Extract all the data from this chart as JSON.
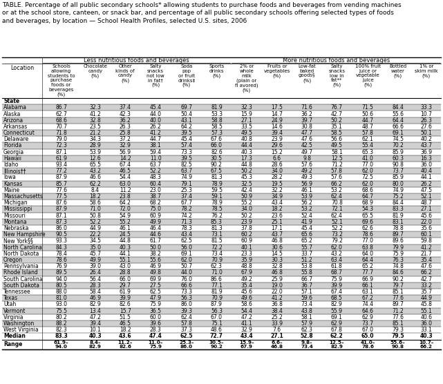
{
  "title": "TABLE. Percentage of all public secondary schools* allowing students to purchase foods and beverages from vending machines\nor at the school store, canteen, or snack bar, and percentage of all public secondary schools offering selected types of foods\nand beverages, by location — School Health Profiles, selected U.S. sites, 2006",
  "locations": [
    "State",
    "Alabama",
    "Alaska",
    "Arizona",
    "Arkansas",
    "Connecticut",
    "Delaware",
    "Florida",
    "Georgia",
    "Hawaii",
    "Idaho",
    "Illinois††",
    "Iowa",
    "Kansas",
    "Maine",
    "Massachusetts",
    "Michigan",
    "Mississippi",
    "Missouri",
    "Montana",
    "Nebraska",
    "New Hampshire",
    "New York§§",
    "North Carolina",
    "North Dakota",
    "Oregon",
    "Pennsylvania",
    "Rhode Island",
    "South Carolina",
    "South Dakota",
    "Tennessee",
    "Texas",
    "Utah",
    "Vermont",
    "Virginia",
    "Washington",
    "West Virginia",
    "Median",
    "Range"
  ],
  "data": [
    [
      null,
      null,
      null,
      null,
      null,
      null,
      null,
      null,
      null,
      null,
      null,
      null,
      null
    ],
    [
      86.7,
      32.3,
      37.4,
      45.4,
      69.7,
      81.9,
      32.3,
      17.5,
      71.6,
      76.7,
      71.5,
      84.4,
      33.3
    ],
    [
      62.7,
      41.2,
      42.3,
      44.0,
      50.4,
      53.3,
      15.9,
      14.7,
      36.2,
      42.7,
      50.6,
      55.6,
      10.7
    ],
    [
      68.6,
      32.8,
      36.2,
      40.0,
      43.1,
      58.8,
      27.1,
      24.9,
      39.7,
      50.2,
      44.7,
      64.4,
      26.3
    ],
    [
      70.7,
      23.5,
      26.3,
      26.2,
      64.2,
      58.5,
      33.5,
      14.6,
      30.8,
      35.1,
      48.7,
      66.6,
      27.6
    ],
    [
      71.8,
      21.2,
      25.8,
      41.2,
      39.5,
      57.3,
      49.5,
      39.4,
      47.7,
      58.5,
      57.8,
      69.1,
      50.1
    ],
    [
      79.0,
      34.3,
      37.2,
      44.7,
      45.4,
      67.6,
      40.8,
      23.9,
      47.6,
      56.6,
      62.1,
      74.5,
      40.2
    ],
    [
      72.3,
      28.9,
      32.9,
      38.1,
      57.4,
      66.0,
      44.4,
      29.6,
      42.5,
      49.5,
      55.4,
      70.2,
      43.7
    ],
    [
      87.1,
      53.9,
      56.9,
      59.4,
      73.3,
      82.6,
      40.3,
      15.2,
      49.7,
      58.1,
      65.3,
      85.9,
      36.9
    ],
    [
      61.9,
      12.6,
      14.2,
      11.0,
      39.5,
      30.5,
      17.3,
      6.6,
      9.8,
      12.5,
      41.0,
      60.3,
      16.3
    ],
    [
      93.4,
      65.5,
      67.4,
      63.7,
      82.5,
      90.2,
      44.8,
      28.6,
      57.6,
      71.2,
      77.0,
      90.8,
      36.0
    ],
    [
      77.2,
      43.2,
      46.5,
      52.2,
      63.7,
      67.5,
      50.2,
      34.0,
      49.2,
      57.8,
      62.0,
      73.7,
      40.4
    ],
    [
      87.9,
      46.6,
      54.4,
      48.3,
      74.9,
      81.3,
      45.3,
      28.2,
      49.3,
      57.6,
      72.5,
      85.9,
      44.1
    ],
    [
      85.7,
      62.2,
      63.0,
      60.4,
      79.1,
      78.9,
      32.5,
      19.5,
      56.9,
      66.2,
      62.0,
      80.0,
      26.2
    ],
    [
      77.6,
      8.4,
      11.2,
      23.0,
      25.3,
      59.5,
      42.4,
      32.2,
      46.1,
      53.2,
      68.6,
      74.9,
      47.5
    ],
    [
      77.5,
      18.2,
      23.8,
      38.7,
      37.4,
      59.1,
      50.9,
      34.9,
      53.9,
      62.4,
      64.7,
      75.2,
      52.1
    ],
    [
      87.6,
      58.6,
      64.2,
      68.2,
      67.7,
      78.9,
      55.2,
      43.4,
      56.2,
      70.8,
      68.9,
      84.4,
      48.7
    ],
    [
      87.9,
      71.0,
      72.0,
      75.0,
      78.2,
      78.5,
      34.0,
      18.2,
      53.2,
      72.1,
      54.3,
      83.3,
      27.1
    ],
    [
      87.1,
      50.8,
      54.9,
      60.9,
      74.2,
      76.2,
      50.2,
      23.6,
      52.4,
      62.4,
      65.5,
      81.9,
      45.6
    ],
    [
      87.3,
      52.2,
      55.2,
      49.9,
      71.3,
      85.3,
      23.9,
      25.1,
      41.9,
      52.1,
      69.6,
      83.1,
      22.0
    ],
    [
      86.0,
      44.9,
      46.1,
      46.4,
      78.3,
      81.3,
      37.8,
      17.1,
      45.4,
      52.2,
      62.6,
      78.8,
      35.6
    ],
    [
      90.5,
      22.2,
      24.5,
      44.6,
      43.4,
      73.1,
      60.2,
      43.7,
      65.6,
      73.2,
      78.6,
      89.7,
      60.1
    ],
    [
      93.3,
      34.5,
      44.8,
      61.7,
      62.5,
      81.5,
      60.9,
      46.8,
      65.2,
      79.2,
      77.0,
      89.6,
      59.8
    ],
    [
      84.3,
      35.0,
      40.3,
      50.0,
      56.0,
      72.2,
      40.1,
      30.6,
      55.7,
      62.0,
      63.8,
      79.9,
      41.2
    ],
    [
      78.4,
      45.7,
      44.1,
      38.2,
      69.1,
      73.4,
      23.3,
      14.5,
      33.7,
      43.2,
      64.0,
      75.9,
      21.7
    ],
    [
      78.6,
      49.9,
      55.1,
      55.6,
      62.0,
      70.9,
      35.9,
      30.3,
      51.2,
      63.4,
      64.4,
      76.3,
      35.4
    ],
    [
      76.9,
      39.0,
      43.0,
      46.9,
      50.7,
      62.3,
      48.8,
      32.8,
      53.8,
      61.8,
      65.2,
      74.8,
      47.6
    ],
    [
      89.5,
      26.4,
      28.8,
      49.8,
      44.0,
      71.0,
      67.9,
      46.8,
      55.8,
      68.7,
      77.7,
      84.6,
      66.2
    ],
    [
      94.0,
      56.4,
      66.0,
      69.9,
      76.0,
      86.6,
      49.2,
      25.9,
      66.7,
      75.9,
      66.9,
      90.2,
      42.7
    ],
    [
      80.5,
      28.3,
      29.7,
      27.5,
      66.6,
      77.1,
      35.4,
      19.0,
      36.7,
      39.9,
      66.1,
      79.7,
      33.2
    ],
    [
      88.0,
      58.4,
      61.9,
      62.5,
      73.3,
      81.9,
      45.6,
      22.0,
      57.1,
      67.4,
      63.1,
      85.1,
      35.7
    ],
    [
      81.0,
      46.9,
      39.9,
      47.9,
      56.3,
      70.9,
      49.6,
      41.2,
      59.6,
      68.5,
      67.2,
      77.6,
      44.9
    ],
    [
      93.0,
      82.9,
      82.6,
      75.9,
      86.0,
      87.9,
      58.6,
      36.8,
      73.4,
      82.9,
      74.4,
      89.7,
      45.8
    ],
    [
      75.5,
      13.4,
      15.7,
      36.5,
      39.3,
      56.3,
      54.4,
      38.4,
      43.8,
      55.9,
      64.6,
      71.2,
      55.1
    ],
    [
      80.2,
      47.2,
      51.5,
      60.0,
      62.4,
      67.0,
      47.2,
      25.2,
      58.1,
      69.1,
      62.9,
      77.6,
      40.6
    ],
    [
      88.2,
      39.4,
      46.5,
      39.6,
      57.8,
      75.1,
      41.1,
      33.9,
      57.9,
      62.9,
      73.7,
      85.1,
      36.0
    ],
    [
      82.3,
      10.1,
      18.2,
      28.3,
      37.3,
      48.6,
      32.9,
      7.6,
      62.3,
      67.8,
      67.0,
      79.3,
      33.1
    ],
    [
      83.3,
      40.3,
      43.6,
      47.4,
      62.5,
      72.7,
      43.4,
      27.1,
      52.8,
      62.2,
      65.0,
      79.5,
      40.3
    ],
    [
      null,
      null,
      null,
      null,
      null,
      null,
      null,
      null,
      null,
      null,
      null,
      null,
      null
    ]
  ],
  "range_low": [
    "61.9",
    "8.4",
    "11.2",
    "11.0",
    "25.3",
    "30.5",
    "15.9",
    "6.6",
    "9.8",
    "12.5",
    "41.0",
    "55.6",
    "10.7"
  ],
  "range_high": [
    "94.0",
    "82.9",
    "82.6",
    "75.9",
    "86.0",
    "90.2",
    "67.9",
    "46.8",
    "73.4",
    "82.9",
    "78.6",
    "90.8",
    "66.2"
  ],
  "col_headers": [
    "Schools\nallowing\nstudents to\npurchase\nfoods or\nbeverages\n(%)",
    "Chocolate\ncandy\n(%)",
    "Other\nkinds of\ncandy\n(%)",
    "Salty\nsnacks\nnot low\nin fat†\n(%)",
    "Soda\npop\nor fruit\ndrinks‡\n(%)",
    "Sports\ndrinks\n(%)",
    "2% or\nwhole\nmilk\n(plain or\nfl avored)\n(%)",
    "Fruits or\nvegetables\n(%)",
    "Low-fat\nbaked\ngoods§\n(%)",
    "Salty\nsnacks\nlow in\nfat**\n(%)",
    "100% fruit\njuice or\nvegetable\njuice\n(%)",
    "Bottled\nwater\n(%)",
    "1% or\nskim milk\n(%)"
  ],
  "less_label": "Less nutritious foods and beverages",
  "more_label": "More nutritious foods and beverages",
  "less_cols": 6,
  "more_cols": 7,
  "bg_color": "#ffffff",
  "alt_row_color": "#d0d0d0",
  "font_size_title": 6.5,
  "font_size_col_header": 5.0,
  "font_size_data": 5.5,
  "font_size_group_header": 6.0
}
